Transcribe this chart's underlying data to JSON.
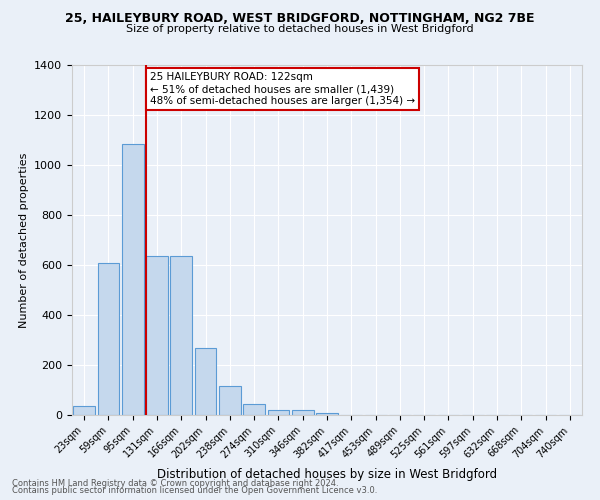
{
  "title": "25, HAILEYBURY ROAD, WEST BRIDGFORD, NOTTINGHAM, NG2 7BE",
  "subtitle": "Size of property relative to detached houses in West Bridgford",
  "xlabel": "Distribution of detached houses by size in West Bridgford",
  "ylabel": "Number of detached properties",
  "footnote1": "Contains HM Land Registry data © Crown copyright and database right 2024.",
  "footnote2": "Contains public sector information licensed under the Open Government Licence v3.0.",
  "bin_labels": [
    "23sqm",
    "59sqm",
    "95sqm",
    "131sqm",
    "166sqm",
    "202sqm",
    "238sqm",
    "274sqm",
    "310sqm",
    "346sqm",
    "382sqm",
    "417sqm",
    "453sqm",
    "489sqm",
    "525sqm",
    "561sqm",
    "597sqm",
    "632sqm",
    "668sqm",
    "704sqm",
    "740sqm"
  ],
  "bar_heights": [
    35,
    610,
    1085,
    635,
    635,
    270,
    115,
    45,
    20,
    20,
    10,
    0,
    0,
    0,
    0,
    0,
    0,
    0,
    0,
    0,
    0
  ],
  "bar_color": "#c5d8ed",
  "bar_edge_color": "#5b9bd5",
  "background_color": "#eaf0f8",
  "red_line_color": "#cc0000",
  "annotation_text": "25 HAILEYBURY ROAD: 122sqm\n← 51% of detached houses are smaller (1,439)\n48% of semi-detached houses are larger (1,354) →",
  "annotation_box_color": "#ffffff",
  "annotation_box_edge": "#cc0000",
  "ylim": [
    0,
    1400
  ],
  "yticks": [
    0,
    200,
    400,
    600,
    800,
    1000,
    1200,
    1400
  ]
}
